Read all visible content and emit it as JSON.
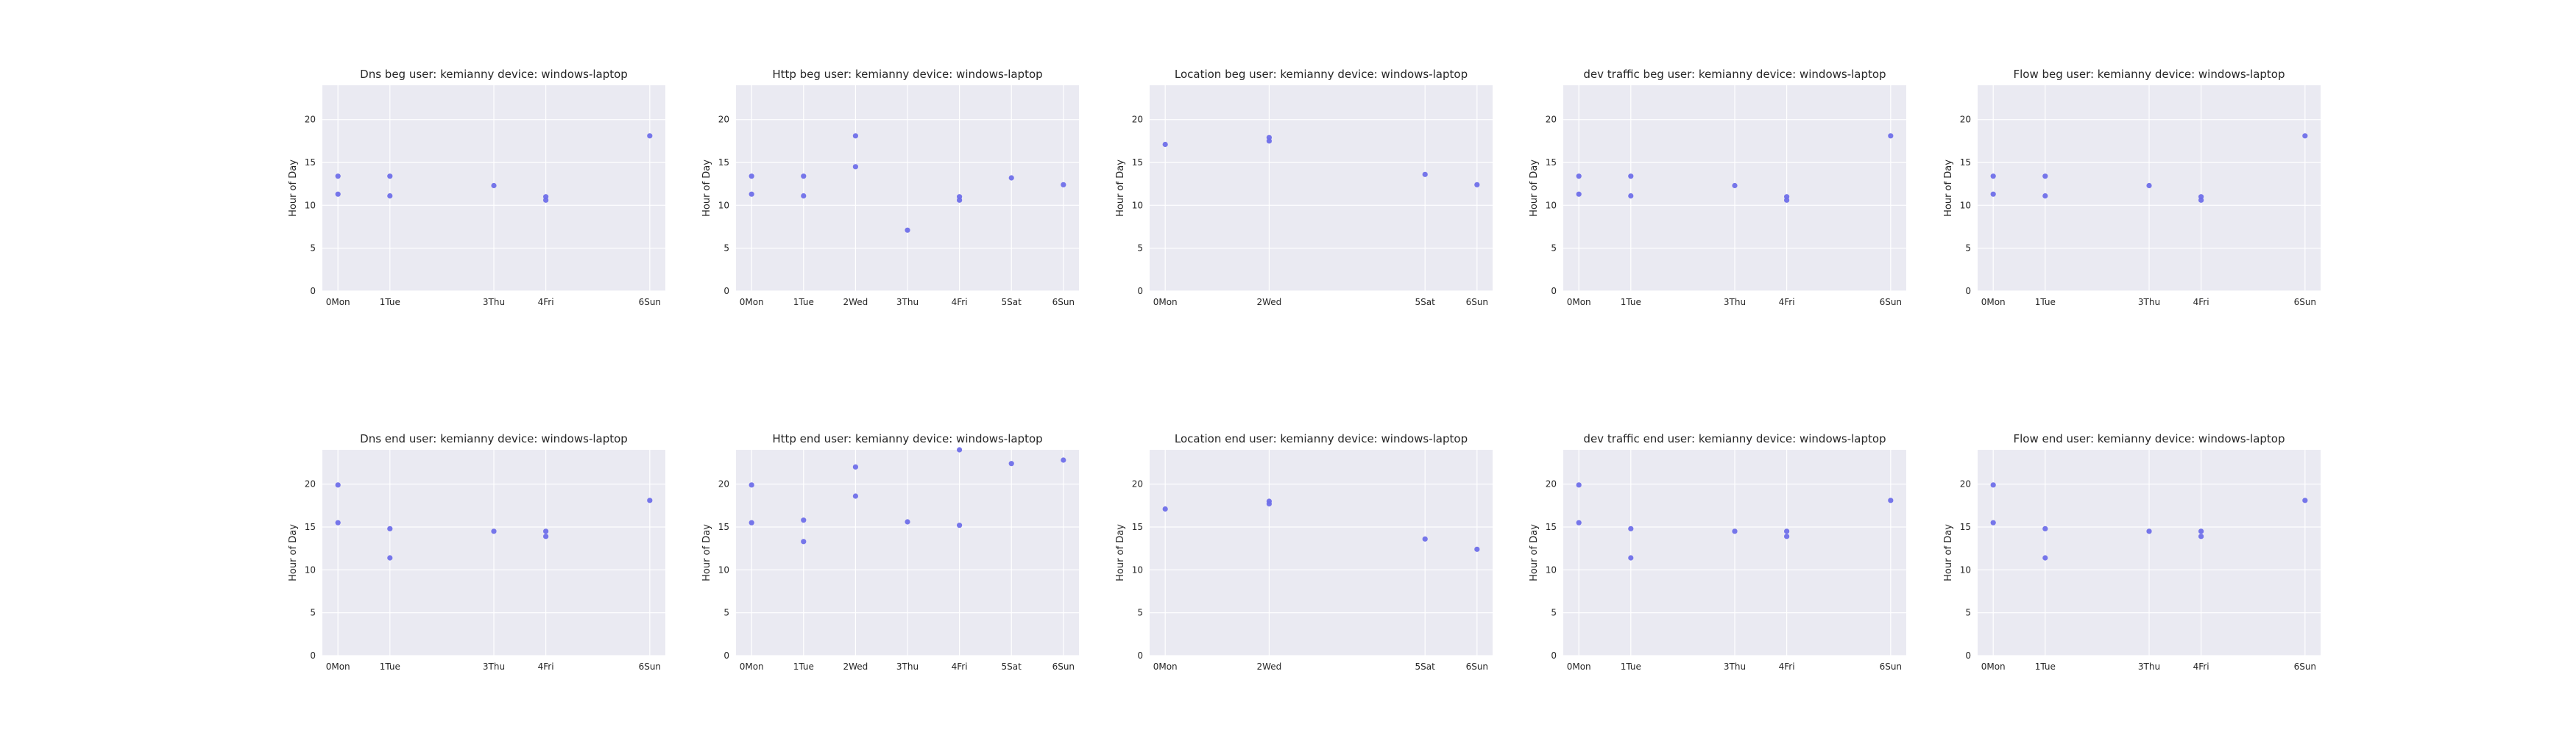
{
  "chart_data": [
    {
      "type": "scatter",
      "title": "Dns beg user: kemianny device: windows-laptop",
      "ylabel": "Hour of Day",
      "ylim": [
        0,
        24
      ],
      "yticks": [
        0,
        5,
        10,
        15,
        20
      ],
      "grid": true,
      "x_tick_values": [
        0,
        1,
        3,
        4,
        6
      ],
      "x_tick_labels": [
        "0Mon",
        "1Tue",
        "3Thu",
        "4Fri",
        "6Sun"
      ],
      "points": [
        {
          "x": 0,
          "y": 13.4
        },
        {
          "x": 0,
          "y": 11.3
        },
        {
          "x": 1,
          "y": 13.4
        },
        {
          "x": 1,
          "y": 11.1
        },
        {
          "x": 3,
          "y": 12.3
        },
        {
          "x": 4,
          "y": 11.0
        },
        {
          "x": 4,
          "y": 10.6
        },
        {
          "x": 6,
          "y": 18.1
        }
      ]
    },
    {
      "type": "scatter",
      "title": "Http beg user: kemianny device: windows-laptop",
      "ylabel": "Hour of Day",
      "ylim": [
        0,
        24
      ],
      "yticks": [
        0,
        5,
        10,
        15,
        20
      ],
      "grid": true,
      "x_tick_values": [
        0,
        1,
        2,
        3,
        4,
        5,
        6
      ],
      "x_tick_labels": [
        "0Mon",
        "1Tue",
        "2Wed",
        "3Thu",
        "4Fri",
        "5Sat",
        "6Sun"
      ],
      "points": [
        {
          "x": 0,
          "y": 13.4
        },
        {
          "x": 0,
          "y": 11.3
        },
        {
          "x": 1,
          "y": 13.4
        },
        {
          "x": 1,
          "y": 11.1
        },
        {
          "x": 2,
          "y": 18.1
        },
        {
          "x": 2,
          "y": 14.5
        },
        {
          "x": 3,
          "y": 7.1
        },
        {
          "x": 4,
          "y": 11.0
        },
        {
          "x": 4,
          "y": 10.6
        },
        {
          "x": 5,
          "y": 13.2
        },
        {
          "x": 6,
          "y": 12.4
        }
      ]
    },
    {
      "type": "scatter",
      "title": "Location beg user: kemianny device: windows-laptop",
      "ylabel": "Hour of Day",
      "ylim": [
        0,
        24
      ],
      "yticks": [
        0,
        5,
        10,
        15,
        20
      ],
      "grid": true,
      "x_tick_values": [
        0,
        2,
        5,
        6
      ],
      "x_tick_labels": [
        "0Mon",
        "2Wed",
        "5Sat",
        "6Sun"
      ],
      "points": [
        {
          "x": 0,
          "y": 17.1
        },
        {
          "x": 2,
          "y": 17.9
        },
        {
          "x": 2,
          "y": 17.5
        },
        {
          "x": 5,
          "y": 13.6
        },
        {
          "x": 6,
          "y": 12.4
        }
      ]
    },
    {
      "type": "scatter",
      "title": "dev traffic beg user: kemianny device: windows-laptop",
      "ylabel": "Hour of Day",
      "ylim": [
        0,
        24
      ],
      "yticks": [
        0,
        5,
        10,
        15,
        20
      ],
      "grid": true,
      "x_tick_values": [
        0,
        1,
        3,
        4,
        6
      ],
      "x_tick_labels": [
        "0Mon",
        "1Tue",
        "3Thu",
        "4Fri",
        "6Sun"
      ],
      "points": [
        {
          "x": 0,
          "y": 13.4
        },
        {
          "x": 0,
          "y": 11.3
        },
        {
          "x": 1,
          "y": 13.4
        },
        {
          "x": 1,
          "y": 11.1
        },
        {
          "x": 3,
          "y": 12.3
        },
        {
          "x": 4,
          "y": 11.0
        },
        {
          "x": 4,
          "y": 10.6
        },
        {
          "x": 6,
          "y": 18.1
        }
      ]
    },
    {
      "type": "scatter",
      "title": "Flow beg user: kemianny device: windows-laptop",
      "ylabel": "Hour of Day",
      "ylim": [
        0,
        24
      ],
      "yticks": [
        0,
        5,
        10,
        15,
        20
      ],
      "grid": true,
      "x_tick_values": [
        0,
        1,
        3,
        4,
        6
      ],
      "x_tick_labels": [
        "0Mon",
        "1Tue",
        "3Thu",
        "4Fri",
        "6Sun"
      ],
      "points": [
        {
          "x": 0,
          "y": 13.4
        },
        {
          "x": 0,
          "y": 11.3
        },
        {
          "x": 1,
          "y": 13.4
        },
        {
          "x": 1,
          "y": 11.1
        },
        {
          "x": 3,
          "y": 12.3
        },
        {
          "x": 4,
          "y": 11.0
        },
        {
          "x": 4,
          "y": 10.6
        },
        {
          "x": 6,
          "y": 18.1
        }
      ]
    },
    {
      "type": "scatter",
      "title": "Dns end user: kemianny device: windows-laptop",
      "ylabel": "Hour of Day",
      "ylim": [
        0,
        24
      ],
      "yticks": [
        0,
        5,
        10,
        15,
        20
      ],
      "grid": true,
      "x_tick_values": [
        0,
        1,
        3,
        4,
        6
      ],
      "x_tick_labels": [
        "0Mon",
        "1Tue",
        "3Thu",
        "4Fri",
        "6Sun"
      ],
      "points": [
        {
          "x": 0,
          "y": 19.9
        },
        {
          "x": 0,
          "y": 15.5
        },
        {
          "x": 1,
          "y": 14.8
        },
        {
          "x": 1,
          "y": 11.4
        },
        {
          "x": 3,
          "y": 14.5
        },
        {
          "x": 4,
          "y": 14.5
        },
        {
          "x": 4,
          "y": 13.9
        },
        {
          "x": 6,
          "y": 18.1
        }
      ]
    },
    {
      "type": "scatter",
      "title": "Http end user: kemianny device: windows-laptop",
      "ylabel": "Hour of Day",
      "ylim": [
        0,
        24
      ],
      "yticks": [
        0,
        5,
        10,
        15,
        20
      ],
      "grid": true,
      "x_tick_values": [
        0,
        1,
        2,
        3,
        4,
        5,
        6
      ],
      "x_tick_labels": [
        "0Mon",
        "1Tue",
        "2Wed",
        "3Thu",
        "4Fri",
        "5Sat",
        "6Sun"
      ],
      "points": [
        {
          "x": 0,
          "y": 19.9
        },
        {
          "x": 0,
          "y": 15.5
        },
        {
          "x": 1,
          "y": 15.8
        },
        {
          "x": 1,
          "y": 13.3
        },
        {
          "x": 2,
          "y": 22.0
        },
        {
          "x": 2,
          "y": 18.6
        },
        {
          "x": 3,
          "y": 15.6
        },
        {
          "x": 4,
          "y": 24.0
        },
        {
          "x": 4,
          "y": 15.2
        },
        {
          "x": 5,
          "y": 22.4
        },
        {
          "x": 6,
          "y": 22.8
        }
      ]
    },
    {
      "type": "scatter",
      "title": "Location end user: kemianny device: windows-laptop",
      "ylabel": "Hour of Day",
      "ylim": [
        0,
        24
      ],
      "yticks": [
        0,
        5,
        10,
        15,
        20
      ],
      "grid": true,
      "x_tick_values": [
        0,
        2,
        5,
        6
      ],
      "x_tick_labels": [
        "0Mon",
        "2Wed",
        "5Sat",
        "6Sun"
      ],
      "points": [
        {
          "x": 0,
          "y": 17.1
        },
        {
          "x": 2,
          "y": 18.0
        },
        {
          "x": 2,
          "y": 17.7
        },
        {
          "x": 5,
          "y": 13.6
        },
        {
          "x": 6,
          "y": 12.4
        }
      ]
    },
    {
      "type": "scatter",
      "title": "dev traffic end user: kemianny device: windows-laptop",
      "ylabel": "Hour of Day",
      "ylim": [
        0,
        24
      ],
      "yticks": [
        0,
        5,
        10,
        15,
        20
      ],
      "grid": true,
      "x_tick_values": [
        0,
        1,
        3,
        4,
        6
      ],
      "x_tick_labels": [
        "0Mon",
        "1Tue",
        "3Thu",
        "4Fri",
        "6Sun"
      ],
      "points": [
        {
          "x": 0,
          "y": 19.9
        },
        {
          "x": 0,
          "y": 15.5
        },
        {
          "x": 1,
          "y": 14.8
        },
        {
          "x": 1,
          "y": 11.4
        },
        {
          "x": 3,
          "y": 14.5
        },
        {
          "x": 4,
          "y": 14.5
        },
        {
          "x": 4,
          "y": 13.9
        },
        {
          "x": 6,
          "y": 18.1
        }
      ]
    },
    {
      "type": "scatter",
      "title": "Flow end user: kemianny device: windows-laptop",
      "ylabel": "Hour of Day",
      "ylim": [
        0,
        24
      ],
      "yticks": [
        0,
        5,
        10,
        15,
        20
      ],
      "grid": true,
      "x_tick_values": [
        0,
        1,
        3,
        4,
        6
      ],
      "x_tick_labels": [
        "0Mon",
        "1Tue",
        "3Thu",
        "4Fri",
        "6Sun"
      ],
      "points": [
        {
          "x": 0,
          "y": 19.9
        },
        {
          "x": 0,
          "y": 15.5
        },
        {
          "x": 1,
          "y": 14.8
        },
        {
          "x": 1,
          "y": 11.4
        },
        {
          "x": 3,
          "y": 14.5
        },
        {
          "x": 4,
          "y": 14.5
        },
        {
          "x": 4,
          "y": 13.9
        },
        {
          "x": 6,
          "y": 18.1
        }
      ]
    }
  ],
  "colors": {
    "axes_background": "#eaeaf2",
    "grid": "#ffffff",
    "marker": "#6f6fe9",
    "text": "#262626"
  }
}
